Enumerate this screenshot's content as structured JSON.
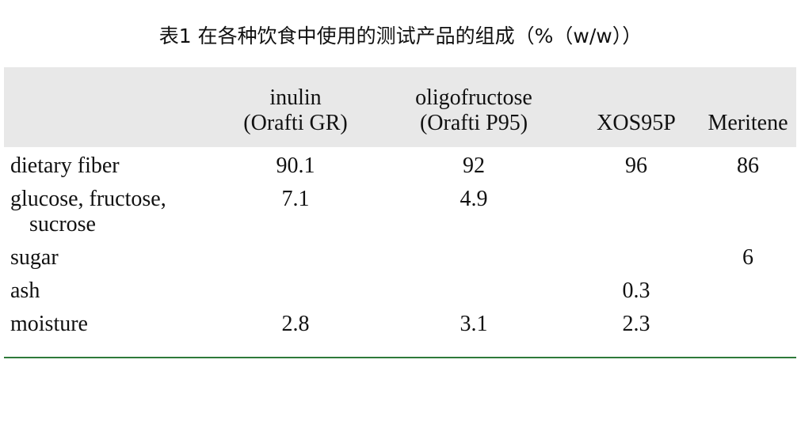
{
  "title": "表1 在各种饮食中使用的测试产品的组成（%（w/w））",
  "table": {
    "columns": [
      null,
      [
        "inulin",
        "(Orafti GR)"
      ],
      [
        "oligofructose",
        "(Orafti P95)"
      ],
      [
        "XOS95P"
      ],
      [
        "Meritene"
      ]
    ],
    "rows": [
      [
        "dietary fiber",
        "90.1",
        "92",
        "96",
        "86"
      ],
      [
        "glucose, fructose, sucrose",
        "7.1",
        "4.9",
        null,
        null
      ],
      [
        "sugar",
        null,
        null,
        null,
        "6"
      ],
      [
        "ash",
        null,
        null,
        "0.3",
        null
      ],
      [
        "moisture",
        "2.8",
        "3.1",
        "2.3",
        null
      ]
    ]
  }
}
